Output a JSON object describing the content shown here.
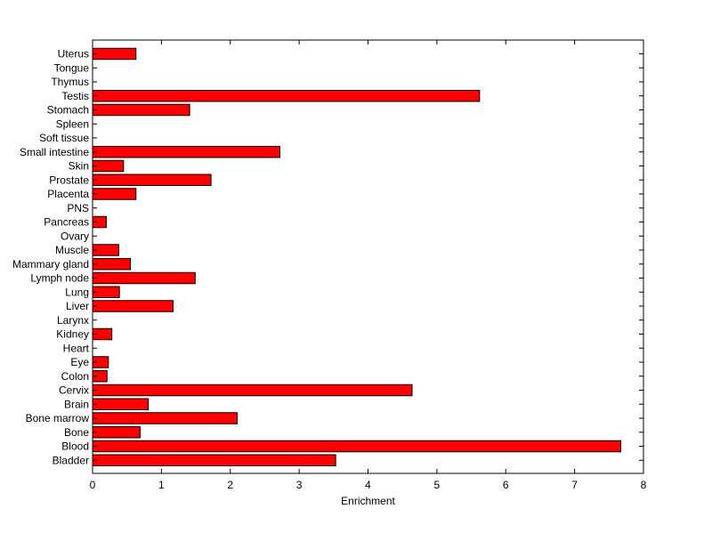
{
  "chart_data": {
    "type": "bar",
    "orientation": "horizontal",
    "title": "",
    "xlabel": "Enrichment",
    "ylabel": "",
    "xlim": [
      0,
      8
    ],
    "xticks": [
      0,
      1,
      2,
      3,
      4,
      5,
      6,
      7,
      8
    ],
    "grid": false,
    "bar_color": "#ff0000",
    "bar_edge_color": "#000000",
    "categories": [
      "Uterus",
      "Tongue",
      "Thymus",
      "Testis",
      "Stomach",
      "Spleen",
      "Soft tissue",
      "Small intestine",
      "Skin",
      "Prostate",
      "Placenta",
      "PNS",
      "Pancreas",
      "Ovary",
      "Muscle",
      "Mammary gland",
      "Lymph node",
      "Lung",
      "Liver",
      "Larynx",
      "Kidney",
      "Heart",
      "Eye",
      "Colon",
      "Cervix",
      "Brain",
      "Bone marrow",
      "Bone",
      "Blood",
      "Bladder"
    ],
    "values": [
      0.63,
      0,
      0,
      5.62,
      1.41,
      0,
      0,
      2.72,
      0.45,
      1.72,
      0.63,
      0,
      0.2,
      0,
      0.38,
      0.55,
      1.49,
      0.39,
      1.17,
      0,
      0.28,
      0,
      0.23,
      0.21,
      4.64,
      0.81,
      2.1,
      0.69,
      7.67,
      3.53
    ]
  }
}
